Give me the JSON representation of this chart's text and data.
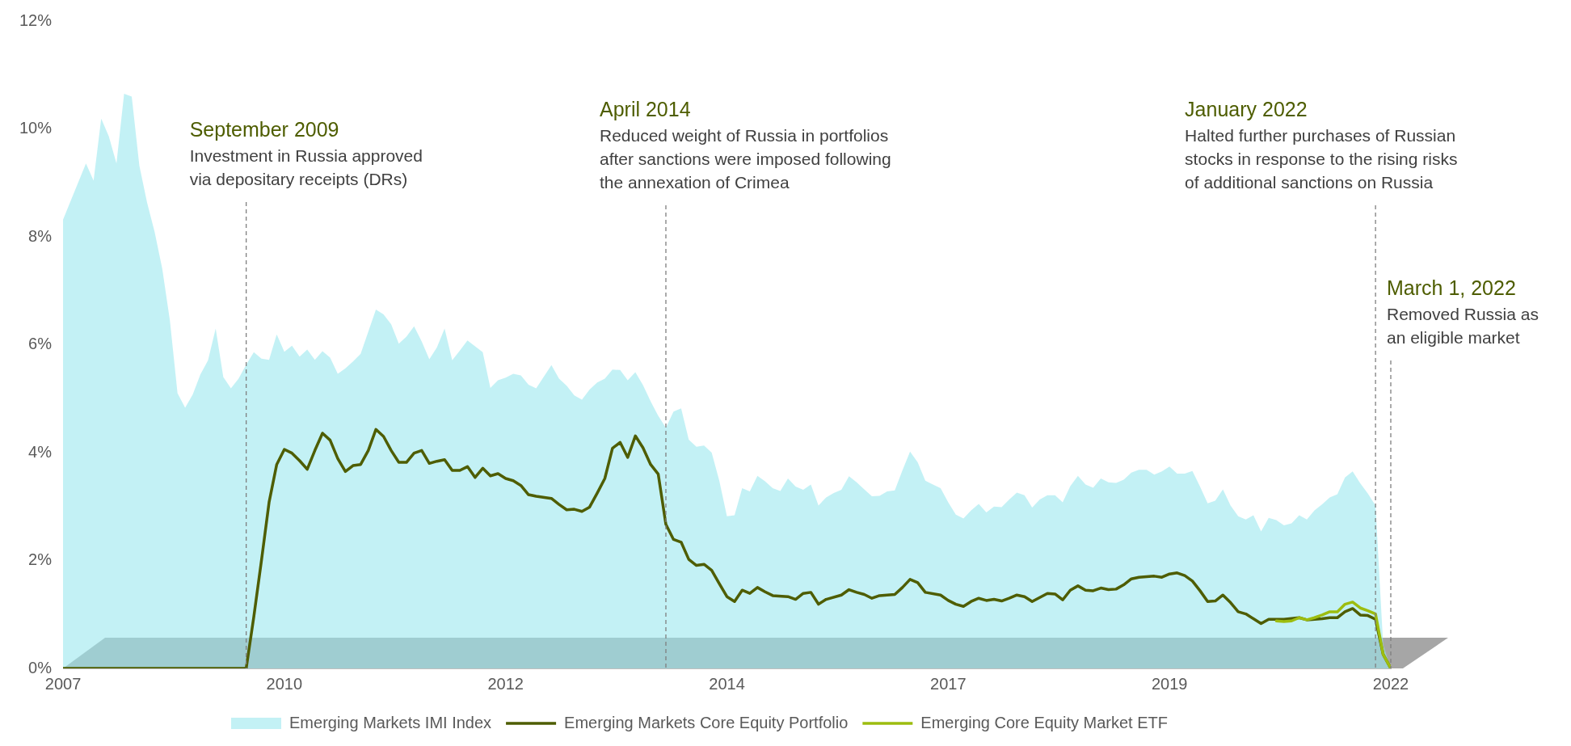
{
  "chart_data": {
    "type": "line",
    "series": [
      {
        "type": "area",
        "name": "Emerging Markets IMI Index",
        "color": "#c3f1f5",
        "x": [
          "2007-09",
          "2007-12",
          "2008-01",
          "2008-02",
          "2008-03",
          "2008-04",
          "2008-05",
          "2008-06",
          "2008-07",
          "2008-08",
          "2008-09",
          "2008-10",
          "2008-11",
          "2008-12",
          "2009-01",
          "2009-02",
          "2009-03",
          "2009-04",
          "2009-05",
          "2009-06",
          "2009-07",
          "2009-08",
          "2009-09",
          "2009-10",
          "2009-11",
          "2009-12",
          "2010-01",
          "2010-02",
          "2010-03",
          "2010-04",
          "2010-05",
          "2010-06",
          "2010-07",
          "2010-08",
          "2010-09",
          "2010-10",
          "2010-11",
          "2010-12",
          "2011-02",
          "2011-03",
          "2011-04",
          "2011-05",
          "2011-06",
          "2011-07",
          "2011-08",
          "2011-09",
          "2011-10",
          "2011-11",
          "2011-12",
          "2012-01",
          "2012-02",
          "2012-03",
          "2012-04",
          "2012-05",
          "2012-06",
          "2012-07",
          "2012-08",
          "2012-09",
          "2012-10",
          "2012-11",
          "2013-01",
          "2013-02",
          "2013-03",
          "2013-04",
          "2013-05",
          "2013-06",
          "2013-07",
          "2013-08",
          "2013-09",
          "2013-10",
          "2013-11",
          "2013-12",
          "2014-01",
          "2014-02",
          "2014-03",
          "2014-04",
          "2014-05",
          "2014-06",
          "2014-07",
          "2014-08",
          "2014-09",
          "2014-10",
          "2014-11",
          "2014-12",
          "2015-01",
          "2015-02",
          "2015-03",
          "2015-04",
          "2015-05",
          "2015-06",
          "2015-07",
          "2015-08",
          "2015-09",
          "2015-10",
          "2015-11",
          "2015-12",
          "2016-01",
          "2016-02",
          "2016-03",
          "2016-04",
          "2016-05",
          "2016-06",
          "2016-07",
          "2016-08",
          "2016-09",
          "2016-10",
          "2016-11",
          "2016-12",
          "2017-01",
          "2017-02",
          "2017-03",
          "2017-04",
          "2017-05",
          "2017-06",
          "2017-07",
          "2017-08",
          "2017-09",
          "2017-10",
          "2017-11",
          "2017-12",
          "2018-01",
          "2018-02",
          "2018-03",
          "2018-04",
          "2018-05",
          "2018-06",
          "2018-07",
          "2018-08",
          "2018-09",
          "2018-10",
          "2018-11",
          "2018-12",
          "2019-01",
          "2019-02",
          "2019-03",
          "2019-04",
          "2019-05",
          "2019-06",
          "2019-07",
          "2019-08",
          "2019-09",
          "2019-10",
          "2019-11",
          "2019-12",
          "2020-01",
          "2020-02",
          "2020-03",
          "2020-04",
          "2020-05",
          "2020-06",
          "2020-07",
          "2020-08",
          "2020-09",
          "2020-10",
          "2020-11",
          "2020-12",
          "2021-01",
          "2021-02",
          "2021-03",
          "2021-04",
          "2021-05",
          "2021-06",
          "2021-07",
          "2021-08",
          "2021-09",
          "2021-10",
          "2021-11",
          "2021-12",
          "2022-01",
          "2022-02",
          "2022-03"
        ],
        "values": [
          8.32,
          9.36,
          9.04,
          10.19,
          9.86,
          9.36,
          10.65,
          10.6,
          9.32,
          8.64,
          8.09,
          7.41,
          6.45,
          5.1,
          4.83,
          5.08,
          5.45,
          5.71,
          6.3,
          5.4,
          5.19,
          5.37,
          5.63,
          5.86,
          5.74,
          5.72,
          6.19,
          5.87,
          5.98,
          5.78,
          5.91,
          5.72,
          5.88,
          5.76,
          5.46,
          5.56,
          5.69,
          5.83,
          6.65,
          6.56,
          6.38,
          6.02,
          6.15,
          6.34,
          6.06,
          5.73,
          5.95,
          6.3,
          5.71,
          5.89,
          6.08,
          5.97,
          5.86,
          5.2,
          5.34,
          5.39,
          5.46,
          5.43,
          5.26,
          5.19,
          5.62,
          5.37,
          5.24,
          5.06,
          4.98,
          5.17,
          5.3,
          5.37,
          5.54,
          5.53,
          5.34,
          5.49,
          5.25,
          4.95,
          4.68,
          4.46,
          4.76,
          4.82,
          4.24,
          4.11,
          4.13,
          4.0,
          3.48,
          2.82,
          2.84,
          3.34,
          3.28,
          3.57,
          3.47,
          3.34,
          3.29,
          3.52,
          3.37,
          3.31,
          3.41,
          3.02,
          3.17,
          3.25,
          3.31,
          3.56,
          3.45,
          3.32,
          3.19,
          3.2,
          3.28,
          3.3,
          3.67,
          4.02,
          3.82,
          3.48,
          3.41,
          3.34,
          3.08,
          2.85,
          2.78,
          2.93,
          3.05,
          2.89,
          3.0,
          2.99,
          3.13,
          3.26,
          3.21,
          2.98,
          3.13,
          3.21,
          3.21,
          3.08,
          3.38,
          3.57,
          3.41,
          3.35,
          3.52,
          3.45,
          3.44,
          3.5,
          3.63,
          3.68,
          3.68,
          3.59,
          3.65,
          3.74,
          3.61,
          3.61,
          3.66,
          3.37,
          3.06,
          3.11,
          3.32,
          3.02,
          2.82,
          2.76,
          2.84,
          2.54,
          2.79,
          2.75,
          2.65,
          2.69,
          2.84,
          2.76,
          2.93,
          3.04,
          3.17,
          3.23,
          3.54,
          3.65,
          3.43,
          3.24,
          3.02,
          0.44,
          0
        ]
      },
      {
        "name": "Emerging Markets Core Equity Portfolio",
        "color": "#4e5d00",
        "x": [
          "2007-09",
          "2009-09",
          "2009-10",
          "2009-11",
          "2009-12",
          "2010-01",
          "2010-02",
          "2010-03",
          "2010-04",
          "2010-05",
          "2010-06",
          "2010-07",
          "2010-08",
          "2010-09",
          "2010-10",
          "2010-11",
          "2010-12",
          "2011-01",
          "2011-02",
          "2011-03",
          "2011-04",
          "2011-05",
          "2011-06",
          "2011-07",
          "2011-08",
          "2011-09",
          "2011-10",
          "2011-11",
          "2011-12",
          "2012-01",
          "2012-02",
          "2012-03",
          "2012-04",
          "2012-05",
          "2012-06",
          "2012-07",
          "2012-08",
          "2012-09",
          "2012-10",
          "2012-11",
          "2013-01",
          "2013-02",
          "2013-03",
          "2013-04",
          "2013-05",
          "2013-06",
          "2013-07",
          "2013-08",
          "2013-09",
          "2013-10",
          "2013-11",
          "2013-12",
          "2014-01",
          "2014-02",
          "2014-03",
          "2014-04",
          "2014-05",
          "2014-06",
          "2014-07",
          "2014-08",
          "2014-09",
          "2014-10",
          "2014-11",
          "2014-12",
          "2015-01",
          "2015-02",
          "2015-03",
          "2015-04",
          "2015-05",
          "2015-06",
          "2015-08",
          "2015-09",
          "2015-10",
          "2015-11",
          "2015-12",
          "2016-01",
          "2016-03",
          "2016-04",
          "2016-05",
          "2016-06",
          "2016-07",
          "2016-08",
          "2016-10",
          "2016-11",
          "2016-12",
          "2017-01",
          "2017-02",
          "2017-04",
          "2017-05",
          "2017-06",
          "2017-07",
          "2017-08",
          "2017-09",
          "2017-10",
          "2017-11",
          "2017-12",
          "2018-01",
          "2018-02",
          "2018-03",
          "2018-04",
          "2018-06",
          "2018-07",
          "2018-08",
          "2018-09",
          "2018-10",
          "2018-11",
          "2018-12",
          "2019-01",
          "2019-02",
          "2019-03",
          "2019-04",
          "2019-05",
          "2019-06",
          "2019-08",
          "2019-09",
          "2019-10",
          "2019-11",
          "2019-12",
          "2020-01",
          "2020-02",
          "2020-03",
          "2020-04",
          "2020-05",
          "2020-06",
          "2020-07",
          "2020-08",
          "2020-09",
          "2020-10",
          "2020-11",
          "2021-01",
          "2021-03",
          "2021-04",
          "2021-06",
          "2021-07",
          "2021-08",
          "2021-09",
          "2021-10",
          "2021-11",
          "2021-12",
          "2022-01",
          "2022-02",
          "2022-03"
        ],
        "values": [
          0,
          0,
          0.96,
          2.0,
          3.08,
          3.78,
          4.06,
          3.99,
          3.85,
          3.69,
          4.04,
          4.36,
          4.23,
          3.89,
          3.65,
          3.76,
          3.78,
          4.04,
          4.43,
          4.3,
          4.04,
          3.82,
          3.82,
          3.99,
          4.04,
          3.8,
          3.84,
          3.87,
          3.67,
          3.67,
          3.74,
          3.54,
          3.71,
          3.57,
          3.61,
          3.52,
          3.48,
          3.39,
          3.22,
          3.19,
          3.15,
          3.04,
          2.94,
          2.95,
          2.91,
          2.99,
          3.25,
          3.52,
          4.08,
          4.19,
          3.91,
          4.31,
          4.09,
          3.78,
          3.6,
          2.67,
          2.39,
          2.34,
          2.02,
          1.91,
          1.93,
          1.82,
          1.57,
          1.33,
          1.24,
          1.45,
          1.39,
          1.5,
          1.42,
          1.35,
          1.33,
          1.28,
          1.39,
          1.41,
          1.19,
          1.28,
          1.36,
          1.46,
          1.41,
          1.37,
          1.3,
          1.35,
          1.37,
          1.5,
          1.65,
          1.59,
          1.41,
          1.36,
          1.26,
          1.19,
          1.15,
          1.24,
          1.3,
          1.26,
          1.28,
          1.25,
          1.3,
          1.36,
          1.33,
          1.24,
          1.39,
          1.38,
          1.27,
          1.45,
          1.53,
          1.45,
          1.44,
          1.49,
          1.46,
          1.47,
          1.55,
          1.66,
          1.69,
          1.71,
          1.69,
          1.75,
          1.77,
          1.72,
          1.62,
          1.44,
          1.24,
          1.25,
          1.36,
          1.22,
          1.05,
          1.01,
          0.92,
          0.83,
          0.91,
          0.91,
          0.94,
          0.9,
          0.92,
          0.94,
          0.94,
          1.05,
          1.11,
          0.99,
          0.98,
          0.91,
          0.26,
          0
        ]
      },
      {
        "name": "Emerging Core Equity Market ETF",
        "color": "#9dbd0f",
        "x": [
          "2020-12",
          "2021-01",
          "2021-02",
          "2021-03",
          "2021-04",
          "2021-05",
          "2021-06",
          "2021-07",
          "2021-08",
          "2021-09",
          "2021-10",
          "2021-11",
          "2021-12",
          "2022-01",
          "2022-02",
          "2022-03"
        ],
        "values": [
          0.88,
          0.87,
          0.88,
          0.94,
          0.9,
          0.94,
          0.99,
          1.05,
          1.05,
          1.19,
          1.23,
          1.12,
          1.07,
          1.01,
          0.26,
          0
        ]
      }
    ],
    "xlim": [
      "2007-09",
      "2022-03"
    ],
    "xticks": [
      {
        "value": "2007-09",
        "label": "2007"
      },
      {
        "value": "2010-02",
        "label": "2010"
      },
      {
        "value": "2012-07",
        "label": "2012"
      },
      {
        "value": "2014-12",
        "label": "2014"
      },
      {
        "value": "2017-05",
        "label": "2017"
      },
      {
        "value": "2019-10",
        "label": "2019"
      },
      {
        "value": "2022-03",
        "label": "2022"
      }
    ],
    "ylim": [
      0,
      12
    ],
    "yticks": [
      {
        "value": 0,
        "label": "0%"
      },
      {
        "value": 2,
        "label": "2%"
      },
      {
        "value": 4,
        "label": "4%"
      },
      {
        "value": 6,
        "label": "6%"
      },
      {
        "value": 8,
        "label": "8%"
      },
      {
        "value": 10,
        "label": "10%"
      },
      {
        "value": 12,
        "label": "12%"
      }
    ],
    "ref_lines": [
      {
        "axis": "x",
        "value": "2009-09",
        "color": "#7f7f7f",
        "line_style": "dashed"
      },
      {
        "axis": "x",
        "value": "2014-04",
        "color": "#7f7f7f",
        "line_style": "dashed"
      },
      {
        "axis": "x",
        "value": "2022-01",
        "color": "#7f7f7f",
        "line_style": "dashed"
      },
      {
        "axis": "x",
        "value": "2022-03",
        "color": "#7f7f7f",
        "line_style": "dashed"
      }
    ],
    "annotations": [
      "September 2009",
      "Investment in Russia approved\nvia depositary receipts (DRs)",
      "April 2014",
      "Reduced weight of Russia in portfolios\nafter sanctions were imposed following\nthe annexation of Crimea",
      "January 2022",
      "Halted further purchases of Russian\nstocks in response to the rising risks\nof additional sanctions on Russia",
      "March 1, 2022",
      "Removed Russia as\nan eligible market"
    ],
    "legend": "bottom",
    "grid": false,
    "marker": "none",
    "line_style": "solid"
  }
}
